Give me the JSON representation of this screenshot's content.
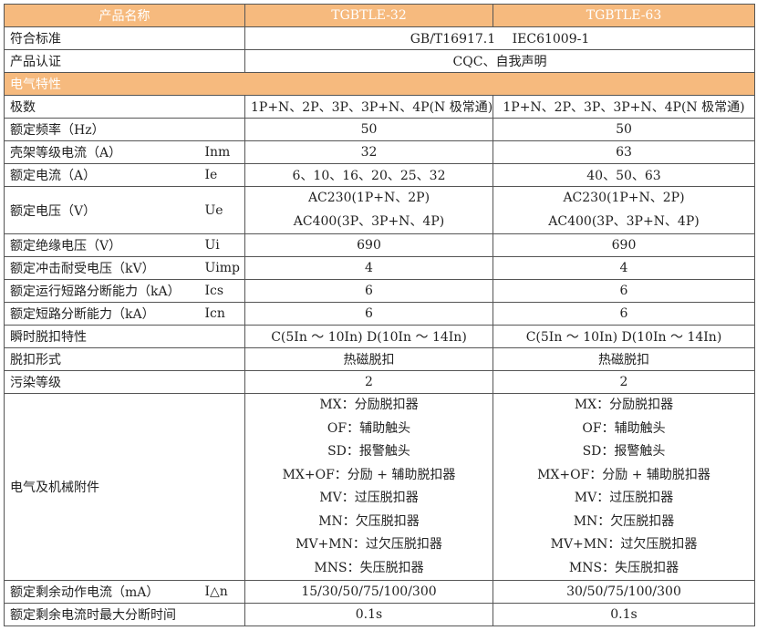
{
  "header": {
    "name": "产品名称",
    "models": [
      "TGBTLE-32",
      "TGBTLE-63"
    ]
  },
  "colors": {
    "header_bg": "#F6BA7E",
    "border": "#555555"
  },
  "rows": [
    {
      "label": "符合标准",
      "span": "GB/T16917.1　 IEC61009-1"
    },
    {
      "label": "产品认证",
      "span": "CQC、自我声明"
    },
    {
      "section": "电气特性"
    },
    {
      "label": "极数",
      "values": [
        "1P+N、2P、3P、3P+N、4P(N 极常通)",
        "1P+N、2P、3P、3P+N、4P(N 极常通)"
      ]
    },
    {
      "label": "额定频率（Hz）",
      "values": [
        "50",
        "50"
      ]
    },
    {
      "label": "壳架等级电流（A）",
      "symbol": "Inm",
      "values": [
        "32",
        "63"
      ]
    },
    {
      "label": "额定电流（A）",
      "symbol": "Ie",
      "values": [
        "6、10、16、20、25、32",
        "40、50、63"
      ]
    },
    {
      "label": "额定电压（V）",
      "symbol": "Ue",
      "lines": [
        [
          "AC230(1P+N、2P)",
          "AC400(3P、3P+N、4P)"
        ],
        [
          "AC230(1P+N、2P)",
          "AC400(3P、3P+N、4P)"
        ]
      ]
    },
    {
      "label": "额定绝缘电压（V）",
      "symbol": "Ui",
      "values": [
        "690",
        "690"
      ]
    },
    {
      "label": "额定冲击耐受电压（kV）",
      "symbol": "Uimp",
      "values": [
        "4",
        "4"
      ]
    },
    {
      "label": "额定运行短路分断能力（kA）",
      "symbol": "Ics",
      "values": [
        "6",
        "6"
      ]
    },
    {
      "label": "额定短路分断能力（kA）",
      "symbol": "Icn",
      "values": [
        "6",
        "6"
      ]
    },
    {
      "label": "瞬时脱扣特性",
      "values": [
        "C(5In ～ 10In) D(10In ～ 14In)",
        "C(5In ～ 10In) D(10In ～ 14In)"
      ]
    },
    {
      "label": "脱扣形式",
      "values": [
        "热磁脱扣",
        "热磁脱扣"
      ]
    },
    {
      "label": "污染等级",
      "values": [
        "2",
        "2"
      ]
    },
    {
      "label": "电气及机械附件",
      "lines": [
        [
          "MX：分励脱扣器",
          "OF：辅助触头",
          "SD：报警触头",
          "MX+OF：分励 + 辅助脱扣器",
          "MV：过压脱扣器",
          "MN：欠压脱扣器",
          "MV+MN：过欠压脱扣器",
          "MNS：失压脱扣器"
        ],
        [
          "MX：分励脱扣器",
          "OF：辅助触头",
          "SD：报警触头",
          "MX+OF：分励 + 辅助脱扣器",
          "MV：过压脱扣器",
          "MN：欠压脱扣器",
          "MV+MN：过欠压脱扣器",
          "MNS：失压脱扣器"
        ]
      ]
    },
    {
      "label": "额定剩余动作电流（mA）",
      "symbol": "I△n",
      "values": [
        "15/30/50/75/100/300",
        "30/50/75/100/300"
      ]
    },
    {
      "label": "额定剩余电流时最大分断时间",
      "values": [
        "0.1s",
        "0.1s"
      ]
    }
  ]
}
